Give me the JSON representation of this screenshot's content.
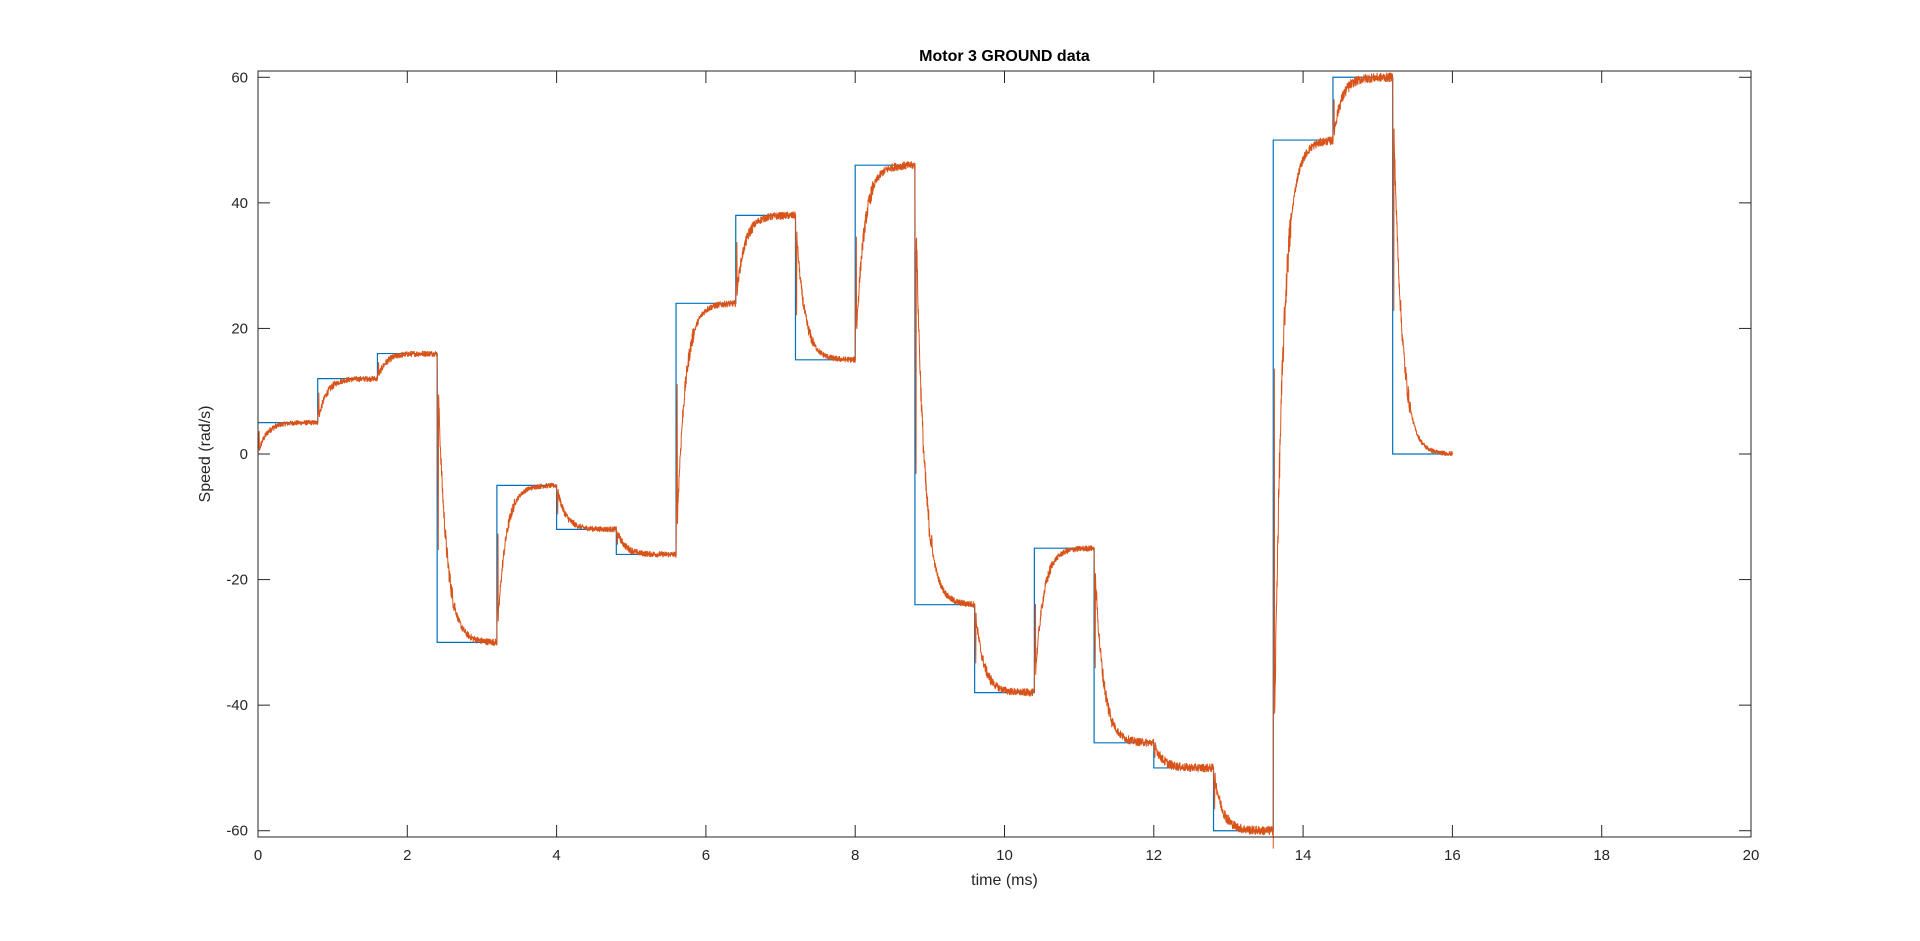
{
  "chart_data": {
    "type": "line",
    "title": "Motor 3  GROUND data",
    "xlabel": "time (ms)",
    "ylabel": "Speed (rad/s)",
    "xlim": [
      0,
      20
    ],
    "ylim": [
      -61,
      61
    ],
    "xticks": [
      0,
      2,
      4,
      6,
      8,
      10,
      12,
      14,
      16,
      18,
      20
    ],
    "yticks": [
      -60,
      -40,
      -20,
      0,
      20,
      40,
      60
    ],
    "grid": false,
    "legend": "none",
    "series": [
      {
        "kind": "reference-step",
        "color": "#0072BD",
        "x": [
          0,
          0.8,
          0.8,
          1.6,
          1.6,
          2.4,
          2.4,
          3.2,
          3.2,
          4.0,
          4.0,
          4.8,
          4.8,
          5.6,
          5.6,
          6.4,
          6.4,
          7.2,
          7.2,
          8.0,
          8.0,
          8.8,
          8.8,
          9.6,
          9.6,
          10.4,
          10.4,
          11.2,
          11.2,
          12.0,
          12.0,
          12.8,
          12.8,
          13.6,
          13.6,
          14.4,
          14.4,
          15.2,
          15.2,
          16.0
        ],
        "values": [
          5,
          5,
          12,
          12,
          16,
          16,
          -30,
          -30,
          -5,
          -5,
          -12,
          -12,
          -16,
          -16,
          24,
          24,
          38,
          38,
          15,
          15,
          46,
          46,
          -24,
          -24,
          -38,
          -38,
          -15,
          -15,
          -46,
          -46,
          -50,
          -50,
          -60,
          -60,
          50,
          50,
          60,
          60,
          0,
          0
        ]
      },
      {
        "kind": "measured-response",
        "color": "#D95319",
        "segments": [
          {
            "t0": 0.0,
            "t1": 0.8,
            "from": 0,
            "to": 5
          },
          {
            "t0": 0.8,
            "t1": 1.6,
            "from": 5,
            "to": 12
          },
          {
            "t0": 1.6,
            "t1": 2.4,
            "from": 12,
            "to": 16
          },
          {
            "t0": 2.4,
            "t1": 3.2,
            "from": 16,
            "to": -30
          },
          {
            "t0": 3.2,
            "t1": 4.0,
            "from": -30,
            "to": -5
          },
          {
            "t0": 4.0,
            "t1": 4.8,
            "from": -5,
            "to": -12
          },
          {
            "t0": 4.8,
            "t1": 5.6,
            "from": -12,
            "to": -16
          },
          {
            "t0": 5.6,
            "t1": 6.4,
            "from": -16,
            "to": 24
          },
          {
            "t0": 6.4,
            "t1": 7.2,
            "from": 24,
            "to": 38
          },
          {
            "t0": 7.2,
            "t1": 8.0,
            "from": 38,
            "to": 15
          },
          {
            "t0": 8.0,
            "t1": 8.8,
            "from": 15,
            "to": 46
          },
          {
            "t0": 8.8,
            "t1": 9.6,
            "from": 46,
            "to": -24
          },
          {
            "t0": 9.6,
            "t1": 10.4,
            "from": -24,
            "to": -38
          },
          {
            "t0": 10.4,
            "t1": 11.2,
            "from": -38,
            "to": -15
          },
          {
            "t0": 11.2,
            "t1": 12.0,
            "from": -15,
            "to": -46
          },
          {
            "t0": 12.0,
            "t1": 12.8,
            "from": -46,
            "to": -50
          },
          {
            "t0": 12.8,
            "t1": 13.6,
            "from": -50,
            "to": -60
          },
          {
            "t0": 13.6,
            "t1": 14.4,
            "from": -60,
            "to": 50
          },
          {
            "t0": 14.4,
            "t1": 15.2,
            "from": 50,
            "to": 60
          },
          {
            "t0": 15.2,
            "t1": 16.0,
            "from": 60,
            "to": 0
          }
        ]
      }
    ]
  }
}
